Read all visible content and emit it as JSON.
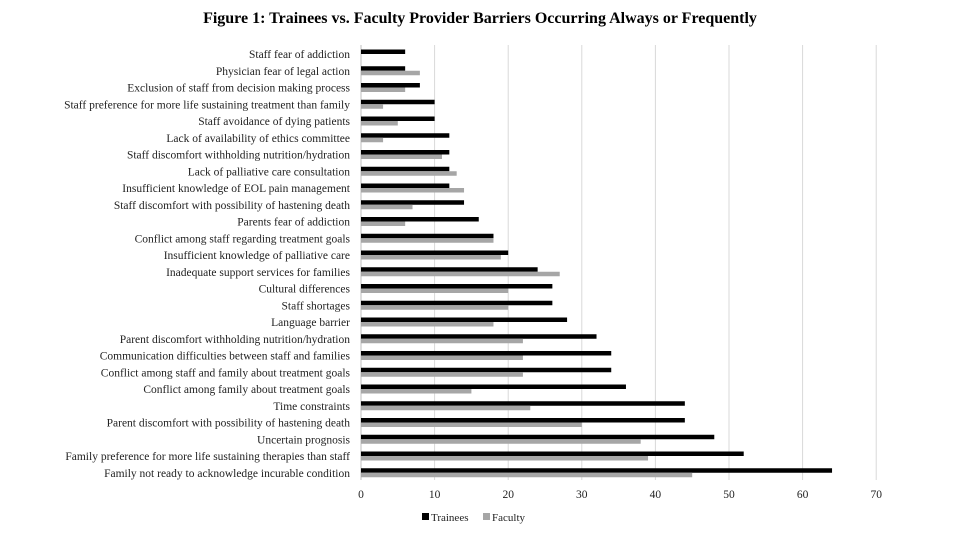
{
  "chart_data": {
    "type": "bar",
    "orientation": "horizontal",
    "title": "Figure 1: Trainees vs. Faculty Provider Barriers Occurring Always or Frequently",
    "categories": [
      "Staff fear of addiction",
      "Physician fear of legal action",
      "Exclusion of staff from decision making process",
      "Staff preference for more life sustaining treatment than family",
      "Staff avoidance of dying patients",
      "Lack of availability of ethics committee",
      "Staff discomfort withholding nutrition/hydration",
      "Lack of palliative care consultation",
      "Insufficient knowledge of EOL pain management",
      "Staff discomfort with possibility of hastening death",
      "Parents fear of addiction",
      "Conflict among staff regarding treatment goals",
      "Insufficient knowledge of palliative care",
      "Inadequate support services for families",
      "Cultural differences",
      "Staff shortages",
      "Language barrier",
      "Parent discomfort withholding nutrition/hydration",
      "Communication difficulties between staff and families",
      "Conflict among staff and family about treatment goals",
      "Conflict among family about treatment goals",
      "Time constraints",
      "Parent discomfort with possibility of hastening death",
      "Uncertain prognosis",
      "Family preference for more life sustaining therapies than staff",
      "Family not ready to acknowledge incurable condition"
    ],
    "series": [
      {
        "name": "Trainees",
        "color": "#000000",
        "values": [
          6,
          6,
          8,
          10,
          10,
          12,
          12,
          12,
          12,
          14,
          16,
          18,
          20,
          24,
          26,
          26,
          28,
          32,
          34,
          34,
          36,
          44,
          44,
          48,
          52,
          64
        ]
      },
      {
        "name": "Faculty",
        "color": "#a6a6a6",
        "values": [
          0,
          8,
          6,
          3,
          5,
          3,
          11,
          13,
          14,
          7,
          6,
          18,
          19,
          27,
          20,
          20,
          18,
          22,
          22,
          22,
          15,
          23,
          30,
          38,
          39,
          45
        ]
      }
    ],
    "xlim": [
      0,
      70
    ],
    "xticks": [
      0,
      10,
      20,
      30,
      40,
      50,
      60,
      70
    ],
    "grid": true,
    "legend_position": "bottom"
  }
}
